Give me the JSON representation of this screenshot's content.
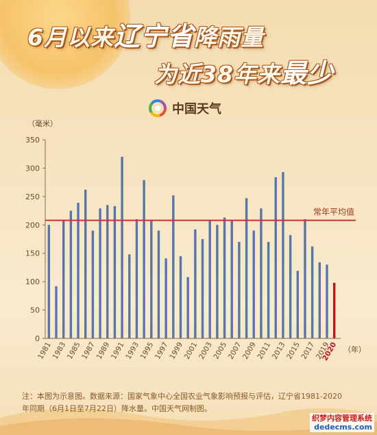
{
  "title": {
    "line1_before": "6月以来",
    "line1_em": "辽宁省",
    "line1_after": "降雨量",
    "line2_before": "为近38年来",
    "line2_em": "最少"
  },
  "brand": {
    "name": "中国天气",
    "logo_icon": "weather-china-logo-icon"
  },
  "footnote": "注：本图为示意图。数据来源：国家气象中心全国农业气象影响预报与评估，辽宁省1981-2020年同期（6月1日至7月22日）降水量。中国天气网制图。",
  "watermark": {
    "cn": "织梦内容管理系统",
    "url": "dedecms.com"
  },
  "chart_data": {
    "type": "bar",
    "ylabel": "（毫米）",
    "xunit": "（年）",
    "ylim": [
      0,
      350
    ],
    "yticks": [
      0,
      50,
      100,
      150,
      200,
      250,
      300,
      350
    ],
    "x": [
      1981,
      1982,
      1983,
      1984,
      1985,
      1986,
      1987,
      1988,
      1989,
      1990,
      1991,
      1992,
      1993,
      1994,
      1995,
      1996,
      1997,
      1998,
      1999,
      2000,
      2001,
      2002,
      2003,
      2004,
      2005,
      2006,
      2007,
      2008,
      2009,
      2010,
      2011,
      2012,
      2013,
      2014,
      2015,
      2016,
      2017,
      2018,
      2019,
      2020
    ],
    "xtick_labels": [
      "1981",
      "1983",
      "1985",
      "1987",
      "1989",
      "1991",
      "1993",
      "1995",
      "1997",
      "1999",
      "2001",
      "2003",
      "2005",
      "2007",
      "2009",
      "2011",
      "2013",
      "2015",
      "2017",
      "2019",
      "2020"
    ],
    "values": [
      200,
      92,
      207,
      225,
      239,
      262,
      190,
      229,
      235,
      233,
      320,
      148,
      210,
      279,
      207,
      190,
      141,
      252,
      145,
      108,
      192,
      175,
      209,
      200,
      213,
      208,
      170,
      247,
      190,
      229,
      170,
      284,
      293,
      182,
      119,
      210,
      162,
      134,
      130,
      98
    ],
    "highlight_index": 39,
    "bar_color": "#5577a8",
    "highlight_color": "#c0141b",
    "reference_line": {
      "value": 208,
      "label": "常年平均值",
      "color": "#c0392b"
    }
  }
}
